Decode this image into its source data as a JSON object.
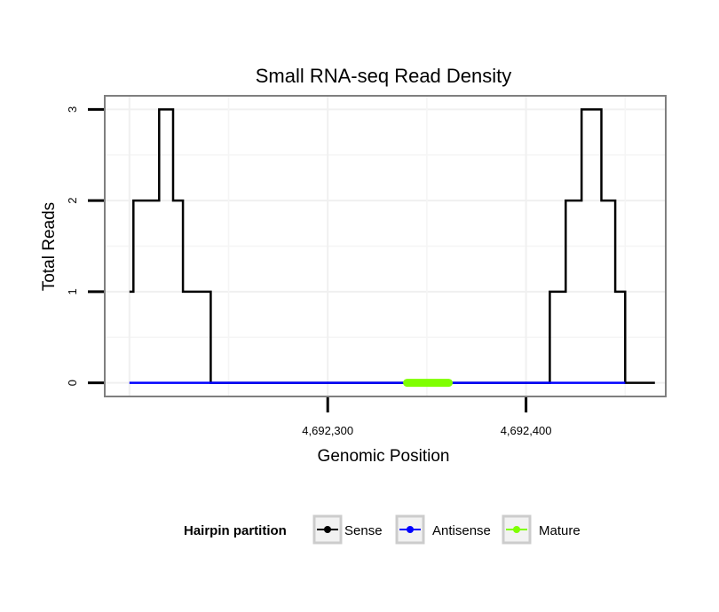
{
  "chart_data": {
    "type": "line",
    "title": "Small RNA-seq Read Density",
    "xlabel": "Genomic Position",
    "ylabel": "Total Reads",
    "xlim": [
      4692188,
      4692470
    ],
    "ylim": [
      -0.14,
      3.14
    ],
    "x_ticks": [
      4692300,
      4692400
    ],
    "x_tick_labels": [
      "4,692,300",
      "4,692,400"
    ],
    "y_ticks": [
      0,
      1,
      2,
      3
    ],
    "y_tick_labels": [
      "0",
      "1",
      "2",
      "3"
    ],
    "grid": true,
    "legend_position": "bottom",
    "legend_title": "Hairpin partition",
    "series": [
      {
        "name": "Sense",
        "color": "#000000",
        "step_points": [
          [
            4692200,
            1
          ],
          [
            4692202,
            2
          ],
          [
            4692215,
            3
          ],
          [
            4692222,
            2
          ],
          [
            4692227,
            1
          ],
          [
            4692241,
            0
          ],
          [
            4692392,
            0
          ],
          [
            4692412,
            1
          ],
          [
            4692420,
            2
          ],
          [
            4692428,
            3
          ],
          [
            4692438,
            2
          ],
          [
            4692445,
            1
          ],
          [
            4692450,
            0
          ],
          [
            4692465,
            0
          ]
        ]
      },
      {
        "name": "Antisense",
        "color": "#0000ff",
        "step_points": [
          [
            4692200,
            0
          ],
          [
            4692243,
            0
          ],
          [
            4692412,
            0
          ],
          [
            4692450,
            0
          ]
        ]
      },
      {
        "name": "Mature",
        "color": "#7fff00",
        "step_points": [
          [
            4692340,
            0
          ],
          [
            4692361,
            0
          ]
        ]
      }
    ]
  }
}
